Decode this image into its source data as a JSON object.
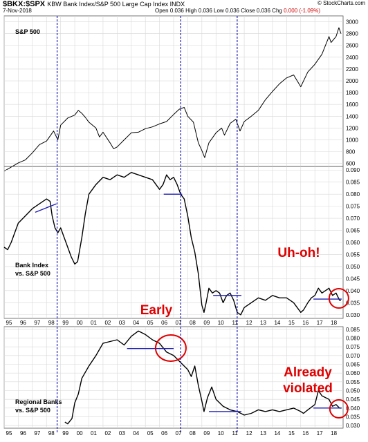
{
  "header": {
    "symbol": "$BKX:$SPX",
    "name": "KBW Bank Index/S&P 500 Large Cap Index INDX",
    "date": "7-Nov-2018",
    "brand": "© StockCharts.com",
    "ohlc": [
      {
        "label": "Open",
        "value": "0.036"
      },
      {
        "label": "High",
        "value": "0.036"
      },
      {
        "label": "Low",
        "value": "0.036"
      },
      {
        "label": "Close",
        "value": "0.036"
      },
      {
        "label": "Chg",
        "value": "0.000 (-1.09%)",
        "color": "#d00000"
      }
    ]
  },
  "colors": {
    "price": "#000000",
    "guide": "#1c1cb4",
    "callout": "#e00000",
    "grid": "#d8d8d8",
    "frame": "#555555"
  },
  "chart_data": [
    {
      "type": "line",
      "label": "S&P 500",
      "ylim": [
        550,
        3100
      ],
      "yticks": [
        600,
        800,
        1000,
        1200,
        1400,
        1600,
        1800,
        2000,
        2200,
        2400,
        2600,
        2800,
        3000
      ],
      "x": [
        1995,
        1995.5,
        1996,
        1996.5,
        1997,
        1997.5,
        1998,
        1998.5,
        1998.8,
        1999,
        1999.5,
        2000,
        2000.25,
        2000.5,
        2000.75,
        2001,
        2001.5,
        2001.75,
        2002,
        2002.5,
        2002.75,
        2003,
        2003.5,
        2004,
        2004.5,
        2005,
        2005.5,
        2006,
        2006.5,
        2007,
        2007.4,
        2007.75,
        2008,
        2008.4,
        2008.75,
        2009,
        2009.2,
        2009.5,
        2010,
        2010.4,
        2010.6,
        2011,
        2011.4,
        2011.7,
        2012,
        2012.5,
        2013,
        2013.5,
        2014,
        2014.5,
        2015,
        2015.5,
        2016,
        2016.5,
        2017,
        2017.5,
        2018,
        2018.15,
        2018.5,
        2018.7,
        2018.85
      ],
      "y": [
        470,
        540,
        610,
        660,
        780,
        920,
        980,
        1150,
        1000,
        1250,
        1370,
        1420,
        1500,
        1450,
        1380,
        1300,
        1200,
        1050,
        1130,
        950,
        850,
        880,
        1000,
        1120,
        1130,
        1190,
        1220,
        1270,
        1310,
        1430,
        1520,
        1550,
        1400,
        1300,
        950,
        820,
        700,
        950,
        1120,
        1200,
        1080,
        1280,
        1350,
        1150,
        1310,
        1400,
        1500,
        1680,
        1820,
        1950,
        2050,
        2100,
        1900,
        2150,
        2280,
        2450,
        2750,
        2650,
        2750,
        2900,
        2800
      ]
    },
    {
      "type": "line",
      "label": "Bank Index\nvs. S&P 500",
      "annotation": "Uh-oh!",
      "ylim": [
        0.0285,
        0.0915
      ],
      "yticks": [
        0.03,
        0.035,
        0.04,
        0.045,
        0.05,
        0.055,
        0.06,
        0.065,
        0.07,
        0.075,
        0.08,
        0.085,
        0.09
      ],
      "x": [
        1995,
        1995.25,
        1995.5,
        1995.75,
        1996,
        1996.5,
        1997,
        1997.5,
        1998,
        1998.25,
        1998.4,
        1998.6,
        1998.8,
        1999,
        1999.25,
        1999.5,
        1999.75,
        2000,
        2000.2,
        2000.5,
        2000.75,
        2001,
        2001.5,
        2002,
        2002.5,
        2003,
        2003.5,
        2004,
        2004.5,
        2005,
        2005.5,
        2006,
        2006.25,
        2006.5,
        2006.75,
        2007,
        2007.25,
        2007.5,
        2007.75,
        2008,
        2008.25,
        2008.5,
        2008.75,
        2009,
        2009.15,
        2009.3,
        2009.5,
        2009.75,
        2010,
        2010.25,
        2010.5,
        2010.75,
        2011,
        2011.25,
        2011.5,
        2011.75,
        2012,
        2012.5,
        2013,
        2013.5,
        2014,
        2014.5,
        2015,
        2015.5,
        2016,
        2016.2,
        2016.5,
        2016.75,
        2017,
        2017.25,
        2017.5,
        2017.75,
        2018,
        2018.25,
        2018.5,
        2018.75,
        2018.85
      ],
      "y": [
        0.058,
        0.057,
        0.06,
        0.064,
        0.068,
        0.071,
        0.074,
        0.076,
        0.078,
        0.077,
        0.071,
        0.066,
        0.064,
        0.066,
        0.062,
        0.058,
        0.054,
        0.051,
        0.052,
        0.062,
        0.072,
        0.08,
        0.084,
        0.087,
        0.086,
        0.088,
        0.087,
        0.089,
        0.088,
        0.087,
        0.086,
        0.082,
        0.084,
        0.088,
        0.086,
        0.087,
        0.084,
        0.08,
        0.078,
        0.071,
        0.062,
        0.056,
        0.047,
        0.034,
        0.031,
        0.035,
        0.041,
        0.039,
        0.04,
        0.039,
        0.035,
        0.038,
        0.039,
        0.036,
        0.031,
        0.03,
        0.033,
        0.035,
        0.037,
        0.036,
        0.038,
        0.037,
        0.037,
        0.035,
        0.031,
        0.032,
        0.035,
        0.037,
        0.038,
        0.041,
        0.039,
        0.04,
        0.041,
        0.038,
        0.039,
        0.036,
        0.036
      ],
      "guides": [
        {
          "x1": 1997.2,
          "x2": 1998.7,
          "y1": 0.0725,
          "y2": 0.076
        },
        {
          "x1": 2006.3,
          "x2": 2007.6,
          "y1": 0.08,
          "y2": 0.08
        },
        {
          "x1": 2009.8,
          "x2": 2011.8,
          "y1": 0.038,
          "y2": 0.038
        },
        {
          "x1": 2016.9,
          "x2": 2018.9,
          "y1": 0.0365,
          "y2": 0.0365
        }
      ]
    },
    {
      "type": "line",
      "label": "Regional Banks\nvs. S&P 500",
      "annotation": "Already\nviolated",
      "ylim": [
        0.0285,
        0.0865
      ],
      "yticks": [
        0.03,
        0.035,
        0.04,
        0.045,
        0.05,
        0.055,
        0.06,
        0.065,
        0.07,
        0.075,
        0.08,
        0.085
      ],
      "x": [
        1999.3,
        1999.5,
        1999.8,
        2000,
        2000.25,
        2000.5,
        2001,
        2001.5,
        2002,
        2002.5,
        2003,
        2003.5,
        2004,
        2004.5,
        2005,
        2005.5,
        2006,
        2006.5,
        2007,
        2007.25,
        2007.5,
        2008,
        2008.25,
        2008.5,
        2008.75,
        2009,
        2009.15,
        2009.4,
        2009.7,
        2010,
        2010.5,
        2011,
        2011.5,
        2012,
        2012.5,
        2013,
        2013.5,
        2014,
        2014.5,
        2015,
        2015.5,
        2016,
        2016.2,
        2016.5,
        2017,
        2017.25,
        2017.5,
        2018,
        2018.25,
        2018.5,
        2018.75,
        2018.85
      ],
      "y": [
        0.032,
        0.031,
        0.034,
        0.043,
        0.048,
        0.057,
        0.064,
        0.07,
        0.077,
        0.078,
        0.079,
        0.076,
        0.081,
        0.084,
        0.082,
        0.079,
        0.077,
        0.072,
        0.07,
        0.068,
        0.066,
        0.062,
        0.058,
        0.064,
        0.053,
        0.044,
        0.038,
        0.046,
        0.052,
        0.045,
        0.041,
        0.039,
        0.038,
        0.036,
        0.037,
        0.039,
        0.038,
        0.039,
        0.038,
        0.039,
        0.04,
        0.038,
        0.037,
        0.039,
        0.042,
        0.05,
        0.047,
        0.045,
        0.041,
        0.042,
        0.04,
        0.04
      ],
      "guides": [
        {
          "x1": 2003.7,
          "x2": 2007.0,
          "y1": 0.074,
          "y2": 0.074
        },
        {
          "x1": 2009.5,
          "x2": 2011.8,
          "y1": 0.038,
          "y2": 0.038
        },
        {
          "x1": 2016.9,
          "x2": 2018.9,
          "y1": 0.04,
          "y2": 0.04
        }
      ]
    }
  ],
  "x_axis": {
    "labels": [
      "95",
      "96",
      "97",
      "98",
      "99",
      "00",
      "01",
      "02",
      "03",
      "04",
      "05",
      "06",
      "07",
      "08",
      "09",
      "10",
      "11",
      "12",
      "13",
      "14",
      "15",
      "16",
      "17",
      "18"
    ]
  },
  "vlines": [
    1998.75,
    2007.5,
    2011.5
  ],
  "annotations": [
    {
      "text": "Early",
      "panel": 1
    }
  ]
}
